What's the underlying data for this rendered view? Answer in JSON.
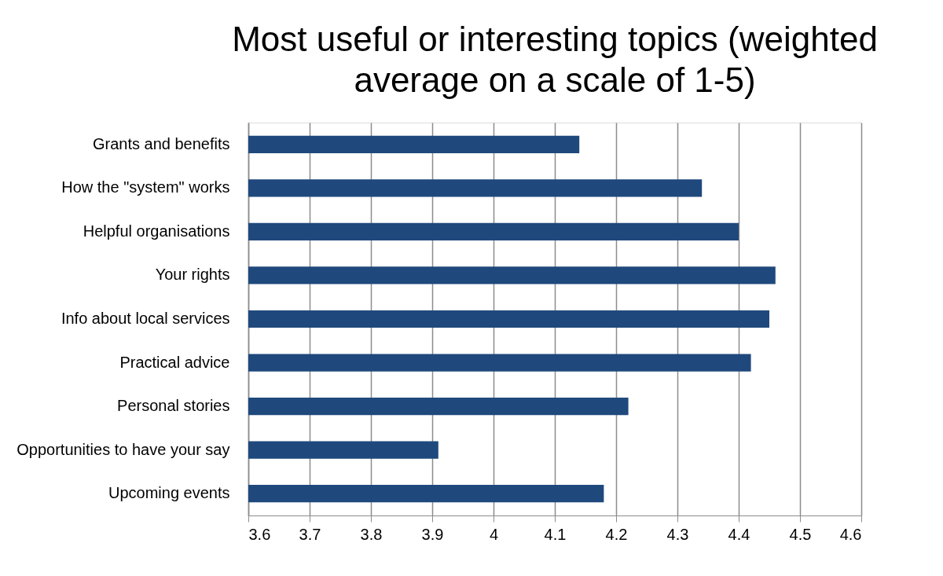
{
  "chart_data": {
    "type": "bar",
    "orientation": "horizontal",
    "title": "Most useful or interesting topics (weighted average on a scale of 1-5)",
    "categories": [
      "Grants and benefits",
      "How the \"system\" works",
      "Helpful organisations",
      "Your rights",
      "Info about local services",
      "Practical advice",
      "Personal stories",
      "Opportunities to have your say",
      "Upcoming events"
    ],
    "values": [
      4.14,
      4.34,
      4.4,
      4.46,
      4.45,
      4.42,
      4.22,
      3.91,
      4.18
    ],
    "color": "#1f497d",
    "xlim": [
      3.6,
      4.6
    ],
    "xticks": [
      3.6,
      3.7,
      3.8,
      3.9,
      4,
      4.1,
      4.2,
      4.3,
      4.4,
      4.5,
      4.6
    ],
    "grid": "x"
  }
}
